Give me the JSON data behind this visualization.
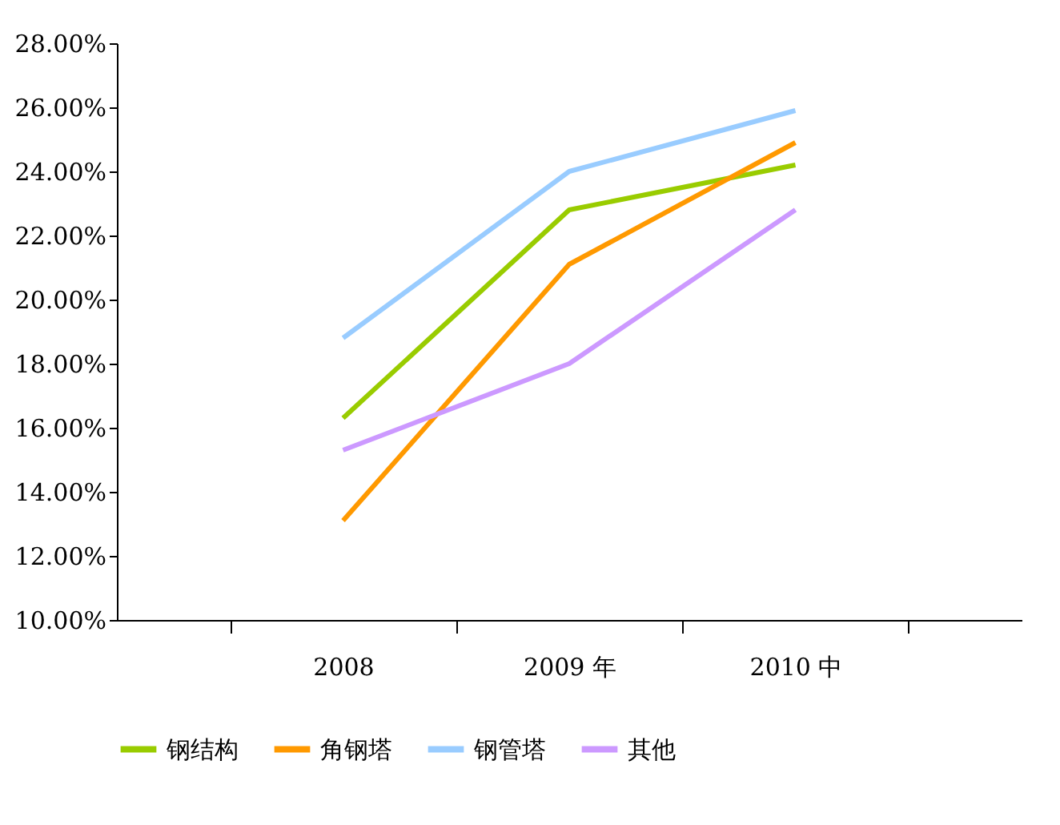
{
  "chart_data": {
    "type": "line",
    "categories": [
      "2008",
      "2009 年",
      "2010 中"
    ],
    "series": [
      {
        "name": "钢结构",
        "color": "#99cc00",
        "values": [
          16.3,
          22.8,
          24.2
        ]
      },
      {
        "name": "角钢塔",
        "color": "#ff9900",
        "values": [
          13.1,
          21.1,
          24.9
        ]
      },
      {
        "name": "钢管塔",
        "color": "#99ccff",
        "values": [
          18.8,
          24.0,
          25.9
        ]
      },
      {
        "name": "其他",
        "color": "#cc99ff",
        "values": [
          15.3,
          18.0,
          22.8
        ]
      }
    ],
    "ylim": [
      10,
      28
    ],
    "yticks": [
      {
        "value": 10,
        "label": "10.00%"
      },
      {
        "value": 12,
        "label": "12.00%"
      },
      {
        "value": 14,
        "label": "14.00%"
      },
      {
        "value": 16,
        "label": "16.00%"
      },
      {
        "value": 18,
        "label": "18.00%"
      },
      {
        "value": 20,
        "label": "20.00%"
      },
      {
        "value": 22,
        "label": "22.00%"
      },
      {
        "value": 24,
        "label": "24.00%"
      },
      {
        "value": 26,
        "label": "26.00%"
      },
      {
        "value": 28,
        "label": "28.00%"
      }
    ],
    "legend": "bottom",
    "grid": false,
    "marker": "none",
    "line_style": "solid"
  }
}
